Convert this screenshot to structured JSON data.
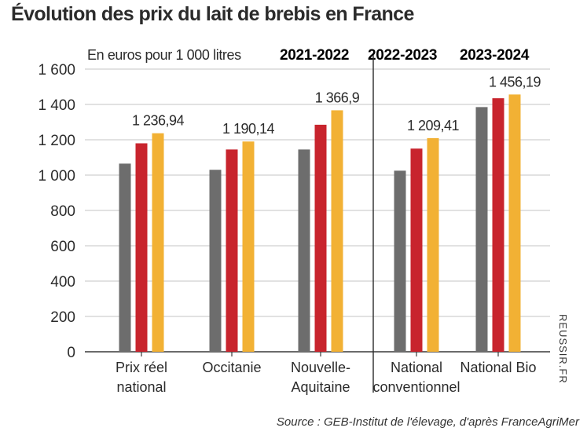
{
  "chart_data": {
    "type": "bar",
    "title": "Évolution des prix du lait de brebis en France",
    "ylabel": "En euros pour 1 000 litres",
    "xlabel": "",
    "ylim": [
      0,
      1600
    ],
    "yticks": [
      0,
      200,
      400,
      600,
      800,
      1000,
      1200,
      1400,
      1600
    ],
    "ytick_labels": [
      "0",
      "200",
      "400",
      "600",
      "800",
      "1 000",
      "1 200",
      "1 400",
      "1 600"
    ],
    "grid": true,
    "legend_position": "top-right",
    "categories": [
      [
        "Prix réel",
        "national"
      ],
      [
        "Occitanie"
      ],
      [
        "Nouvelle-",
        "Aquitaine"
      ],
      [
        "National",
        "conventionnel"
      ],
      [
        "National Bio"
      ]
    ],
    "series": [
      {
        "name": "2021-2022",
        "color": "#6d6d6d",
        "values": [
          1065,
          1030,
          1145,
          1025,
          1385
        ]
      },
      {
        "name": "2022-2023",
        "color": "#c8242d",
        "values": [
          1180,
          1145,
          1285,
          1150,
          1435
        ]
      },
      {
        "name": "2023-2024",
        "color": "#f2b134",
        "values": [
          1236.94,
          1190.14,
          1366.9,
          1209.41,
          1456.19
        ]
      }
    ],
    "data_labels": [
      "1 236,94",
      "1 190,14",
      "1 366,9",
      "1 209,41",
      "1 456,19"
    ],
    "separator_after_category": 2
  },
  "source": "Source : GEB-Institut de l'élevage, d'après FranceAgriMer",
  "watermark": "REUSSIR.FR"
}
